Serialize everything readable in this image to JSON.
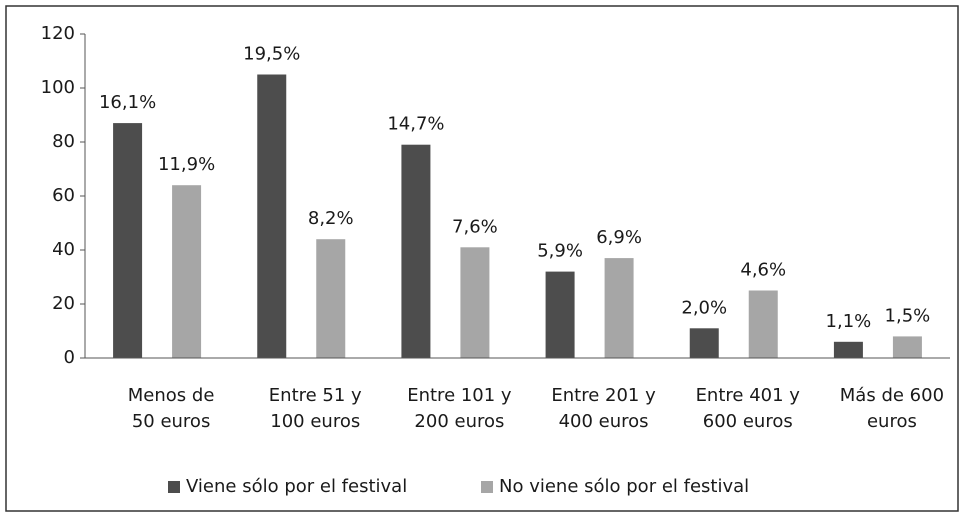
{
  "chart_data": {
    "type": "bar",
    "categories": [
      [
        "Menos de",
        "50 euros"
      ],
      [
        "Entre 51 y",
        "100 euros"
      ],
      [
        "Entre 101 y",
        "200 euros"
      ],
      [
        "Entre 201 y",
        "400 euros"
      ],
      [
        "Entre 401 y",
        "600 euros"
      ],
      [
        "Más de 600",
        "euros"
      ]
    ],
    "series": [
      {
        "name": "Viene sólo por el festival",
        "color": "#4d4d4d",
        "values": [
          87,
          105,
          79,
          32,
          11,
          6
        ],
        "labels": [
          "16,1%",
          "19,5%",
          "14,7%",
          "5,9%",
          "2,0%",
          "1,1%"
        ]
      },
      {
        "name": "No viene sólo por el festival",
        "color": "#a6a6a6",
        "values": [
          64,
          44,
          41,
          37,
          25,
          8
        ],
        "labels": [
          "11,9%",
          "8,2%",
          "7,6%",
          "6,9%",
          "4,6%",
          "1,5%"
        ]
      }
    ],
    "ylim": [
      0,
      120
    ],
    "yticks": [
      0,
      20,
      40,
      60,
      80,
      100,
      120
    ],
    "grid": false,
    "legend": "bottom"
  }
}
